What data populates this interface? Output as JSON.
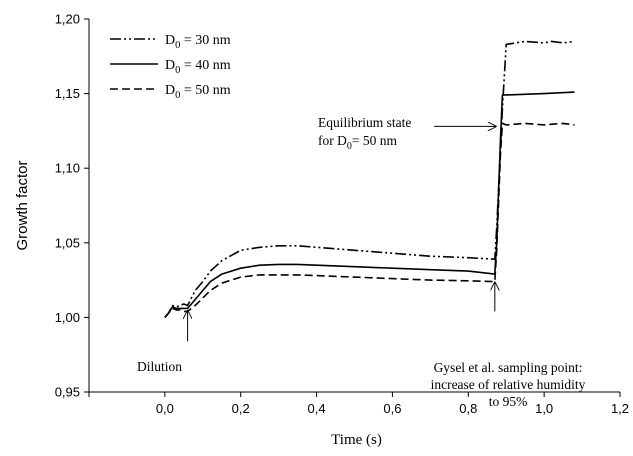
{
  "chart_data": {
    "type": "line",
    "xlabel": "Time (s)",
    "ylabel": "Growth factor",
    "xlim": [
      -0.2,
      1.2
    ],
    "ylim": [
      0.95,
      1.2
    ],
    "x_ticks": [
      0.0,
      0.2,
      0.4,
      0.6,
      0.8,
      1.0,
      1.2
    ],
    "x_tick_labels": [
      "0,0",
      "0,2",
      "0,4",
      "0,6",
      "0,8",
      "1,0",
      "1,2"
    ],
    "y_ticks": [
      0.95,
      1.0,
      1.05,
      1.1,
      1.15,
      1.2
    ],
    "y_tick_labels": [
      "0,95",
      "1,00",
      "1,05",
      "1,10",
      "1,15",
      "1,20"
    ],
    "grid": false,
    "legend_position": "top-left",
    "series": [
      {
        "name": "D0 = 30 nm",
        "legend": {
          "main": "D",
          "sub": "0",
          "rest": " = 30 nm"
        },
        "dash": "dash-dot-dot",
        "x": [
          0.0,
          0.01,
          0.02,
          0.03,
          0.04,
          0.05,
          0.06,
          0.08,
          0.1,
          0.12,
          0.15,
          0.2,
          0.25,
          0.3,
          0.35,
          0.4,
          0.5,
          0.6,
          0.7,
          0.8,
          0.87,
          0.875,
          0.89,
          0.9,
          0.95,
          1.0,
          1.02,
          1.05,
          1.08
        ],
        "y": [
          1.0,
          1.003,
          1.008,
          1.007,
          1.008,
          1.009,
          1.008,
          1.018,
          1.024,
          1.031,
          1.038,
          1.045,
          1.047,
          1.048,
          1.048,
          1.047,
          1.045,
          1.043,
          1.041,
          1.04,
          1.039,
          1.06,
          1.14,
          1.183,
          1.185,
          1.184,
          1.185,
          1.184,
          1.185
        ]
      },
      {
        "name": "D0 = 40 nm",
        "legend": {
          "main": "D",
          "sub": "0",
          "rest": " = 40 nm"
        },
        "dash": "solid",
        "x": [
          0.0,
          0.01,
          0.02,
          0.03,
          0.04,
          0.05,
          0.06,
          0.08,
          0.1,
          0.12,
          0.15,
          0.2,
          0.25,
          0.3,
          0.35,
          0.4,
          0.5,
          0.6,
          0.7,
          0.8,
          0.87,
          0.875,
          0.885,
          0.89,
          1.0,
          1.08
        ],
        "y": [
          1.0,
          1.003,
          1.007,
          1.006,
          1.006,
          1.006,
          1.006,
          1.012,
          1.018,
          1.024,
          1.029,
          1.033,
          1.035,
          1.0355,
          1.0355,
          1.035,
          1.034,
          1.033,
          1.032,
          1.031,
          1.029,
          1.05,
          1.12,
          1.149,
          1.15,
          1.151
        ]
      },
      {
        "name": "D0 = 50 nm",
        "legend": {
          "main": "D",
          "sub": "0",
          "rest": " = 50 nm"
        },
        "dash": "dashed",
        "x": [
          0.0,
          0.01,
          0.02,
          0.03,
          0.04,
          0.05,
          0.06,
          0.08,
          0.1,
          0.12,
          0.15,
          0.2,
          0.25,
          0.3,
          0.35,
          0.4,
          0.5,
          0.6,
          0.7,
          0.8,
          0.87,
          0.875,
          0.885,
          0.89,
          0.9,
          0.95,
          1.0,
          1.05,
          1.08
        ],
        "y": [
          1.0,
          1.003,
          1.006,
          1.005,
          1.005,
          1.004,
          1.004,
          1.008,
          1.013,
          1.018,
          1.023,
          1.027,
          1.0285,
          1.0285,
          1.0285,
          1.028,
          1.027,
          1.026,
          1.025,
          1.0245,
          1.024,
          1.045,
          1.11,
          1.13,
          1.129,
          1.13,
          1.129,
          1.13,
          1.129
        ]
      }
    ],
    "annotations": [
      {
        "id": "dilution",
        "lines": [
          "Dilution"
        ],
        "arrow_from": [
          0.06,
          0.984
        ],
        "arrow_to": [
          0.06,
          1.005
        ]
      },
      {
        "id": "gysel",
        "lines": [
          "Gysel et al. sampling point:",
          "increase of relative humidity",
          "to 95%"
        ],
        "arrow_from": [
          0.87,
          1.004
        ],
        "arrow_to": [
          0.87,
          1.024
        ]
      },
      {
        "id": "equilibrium",
        "lines": [
          {
            "text": "Equilibrium state"
          },
          {
            "main": "for D",
            "sub": "0",
            "rest": "= 50 nm"
          }
        ],
        "arrow_from": [
          0.71,
          1.128
        ],
        "arrow_to": [
          0.875,
          1.128
        ]
      }
    ]
  }
}
